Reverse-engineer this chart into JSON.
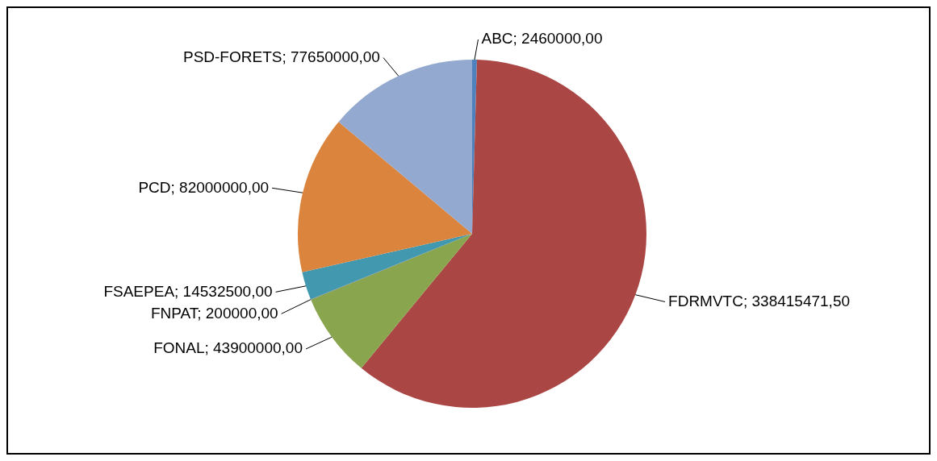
{
  "chart_data": {
    "type": "pie",
    "categories": [
      "ABC",
      "FDRMVTC",
      "FONAL",
      "FNPAT",
      "FSAEPEA",
      "PCD",
      "PSD-FORETS"
    ],
    "values": [
      2460000,
      338415471.5,
      43900000,
      200000,
      14532500,
      82000000,
      77650000
    ],
    "value_labels": [
      "2460000,00",
      "338415471,50",
      "43900000,00",
      "200000,00",
      "14532500,00",
      "82000000,00",
      "77650000,00"
    ],
    "colors": [
      "#4f81bd",
      "#aa4644",
      "#89a54e",
      "#71588f",
      "#4198af",
      "#db843d",
      "#93a9cf"
    ],
    "legend": false
  }
}
